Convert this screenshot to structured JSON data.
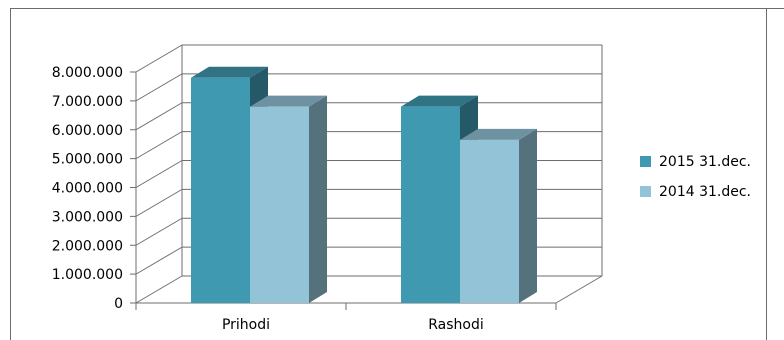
{
  "chart_data": {
    "type": "bar",
    "categories": [
      "Prihodi",
      "Rashodi"
    ],
    "series": [
      {
        "name": "2015 31.dec.",
        "values": [
          7800000,
          6800000
        ],
        "color": "#3f99b1"
      },
      {
        "name": "2014 31.dec.",
        "values": [
          6800000,
          5650000
        ],
        "color": "#93c3d6"
      }
    ],
    "y_ticks": [
      "0",
      "1.000.000",
      "2.000.000",
      "3.000.000",
      "4.000.000",
      "5.000.000",
      "6.000.000",
      "7.000.000",
      "8.000.000"
    ],
    "ylim": [
      0,
      8000000
    ],
    "grid": true,
    "legend_position": "right",
    "style": "3d-clustered-column"
  }
}
